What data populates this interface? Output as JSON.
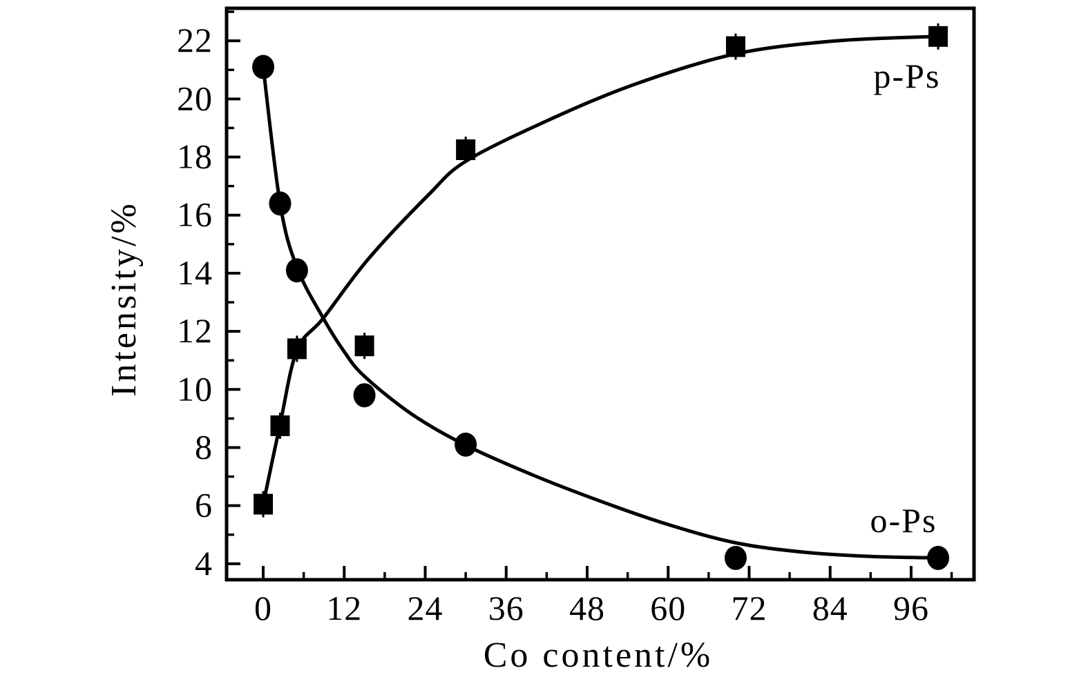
{
  "colors": {
    "foreground": "#000000",
    "background": "#ffffff"
  },
  "chart_data": {
    "type": "scatter",
    "title": "",
    "xlabel": "Co content/%",
    "ylabel": "Intensity/%",
    "xlim": [
      -5.43,
      105.32
    ],
    "ylim": [
      3.45,
      23.12
    ],
    "grid": false,
    "legend": "inline-labels",
    "x_major_ticks": [
      0,
      12,
      24,
      36,
      48,
      60,
      72,
      84,
      96
    ],
    "x_minor_ticks": [
      6,
      18,
      30,
      42,
      54,
      66,
      78,
      90,
      102
    ],
    "y_major_ticks": [
      4,
      6,
      8,
      10,
      12,
      14,
      16,
      18,
      20,
      22
    ],
    "y_minor_ticks": [
      5,
      7,
      9,
      11,
      13,
      15,
      17,
      19,
      21,
      23
    ],
    "series": [
      {
        "name": "o-Ps",
        "marker": "circle",
        "points": [
          [
            0,
            21.1
          ],
          [
            2.5,
            16.4
          ],
          [
            5,
            14.1
          ],
          [
            15,
            9.8
          ],
          [
            30,
            8.1
          ],
          [
            70,
            4.2
          ],
          [
            100,
            4.2
          ]
        ],
        "fit_curve": [
          [
            0,
            21.1
          ],
          [
            2.5,
            16.4
          ],
          [
            5,
            14.2
          ],
          [
            8.9,
            12.45
          ],
          [
            12,
            11.3
          ],
          [
            15,
            10.45
          ],
          [
            22,
            9.15
          ],
          [
            30,
            8.08
          ],
          [
            40,
            7.05
          ],
          [
            50,
            6.15
          ],
          [
            60,
            5.35
          ],
          [
            70,
            4.72
          ],
          [
            80,
            4.4
          ],
          [
            90,
            4.25
          ],
          [
            100,
            4.2
          ]
        ]
      },
      {
        "name": "p-Ps",
        "marker": "square",
        "points": [
          [
            0,
            6.05
          ],
          [
            2.5,
            8.75
          ],
          [
            5,
            11.4
          ],
          [
            15,
            11.5
          ],
          [
            30,
            18.25
          ],
          [
            70,
            21.8
          ],
          [
            100,
            22.15
          ]
        ],
        "fit_curve": [
          [
            0,
            6.05
          ],
          [
            2.5,
            8.8
          ],
          [
            5,
            11.35
          ],
          [
            8.9,
            12.45
          ],
          [
            15.6,
            14.5
          ],
          [
            24.5,
            16.7
          ],
          [
            30,
            17.85
          ],
          [
            41.6,
            19.2
          ],
          [
            55,
            20.5
          ],
          [
            70,
            21.55
          ],
          [
            85,
            22.0
          ],
          [
            100,
            22.15
          ]
        ]
      }
    ]
  }
}
